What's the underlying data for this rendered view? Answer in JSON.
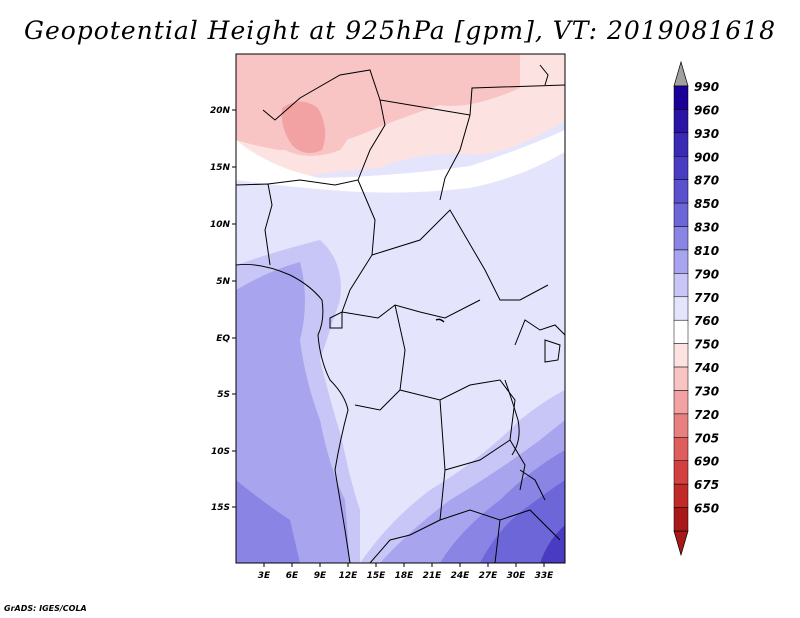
{
  "title": "Geopotential Height at 925hPa [gpm], VT: 2019081618",
  "footer": "GrADS: IGES/COLA",
  "lat_labels": [
    "20N",
    "15N",
    "10N",
    "5N",
    "EQ",
    "5S",
    "10S",
    "15S"
  ],
  "lon_labels": [
    "3E",
    "6E",
    "9E",
    "12E",
    "15E",
    "18E",
    "21E",
    "24E",
    "27E",
    "30E",
    "33E"
  ],
  "colorbar": {
    "levels": [
      "990",
      "960",
      "930",
      "900",
      "870",
      "850",
      "830",
      "810",
      "790",
      "770",
      "760",
      "750",
      "740",
      "730",
      "720",
      "705",
      "690",
      "675",
      "650"
    ],
    "colors": [
      "#1a0096",
      "#2a14a6",
      "#3a2ab6",
      "#4a3cc2",
      "#5b50ce",
      "#6d66d8",
      "#8a84e4",
      "#a8a4ee",
      "#c8c6f6",
      "#e4e4fc",
      "#ffffff",
      "#fde2e2",
      "#f8c4c4",
      "#f2a2a2",
      "#e88080",
      "#de5e5e",
      "#d24040",
      "#c22a2a",
      "#a81818"
    ],
    "top_arrow_color": "#a0a0a0"
  }
}
